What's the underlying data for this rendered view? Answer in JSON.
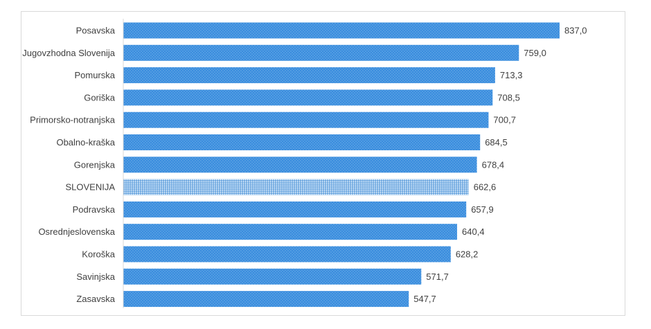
{
  "chart_data": {
    "type": "bar",
    "orientation": "horizontal",
    "title": "",
    "xlabel": "",
    "ylabel": "",
    "xlim": [
      0,
      837
    ],
    "grid": false,
    "legend": "none",
    "bar_color": "#3A8DDE",
    "highlight_color": "#5B9BD5",
    "highlight_category": "SLOVENIJA",
    "categories": [
      "Posavska",
      "Jugovzhodna Slovenija",
      "Pomurska",
      "Goriška",
      "Primorsko-notranjska",
      "Obalno-kraška",
      "Gorenjska",
      "SLOVENIJA",
      "Podravska",
      "Osrednjeslovenska",
      "Koroška",
      "Savinjska",
      "Zasavska"
    ],
    "values": [
      837.0,
      759.0,
      713.3,
      708.5,
      700.7,
      684.5,
      678.4,
      662.6,
      657.9,
      640.4,
      628.2,
      571.7,
      547.7
    ],
    "value_labels": [
      "837,0",
      "759,0",
      "713,3",
      "708,5",
      "700,7",
      "684,5",
      "678,4",
      "662,6",
      "657,9",
      "640,4",
      "628,2",
      "571,7",
      "547,7"
    ]
  }
}
